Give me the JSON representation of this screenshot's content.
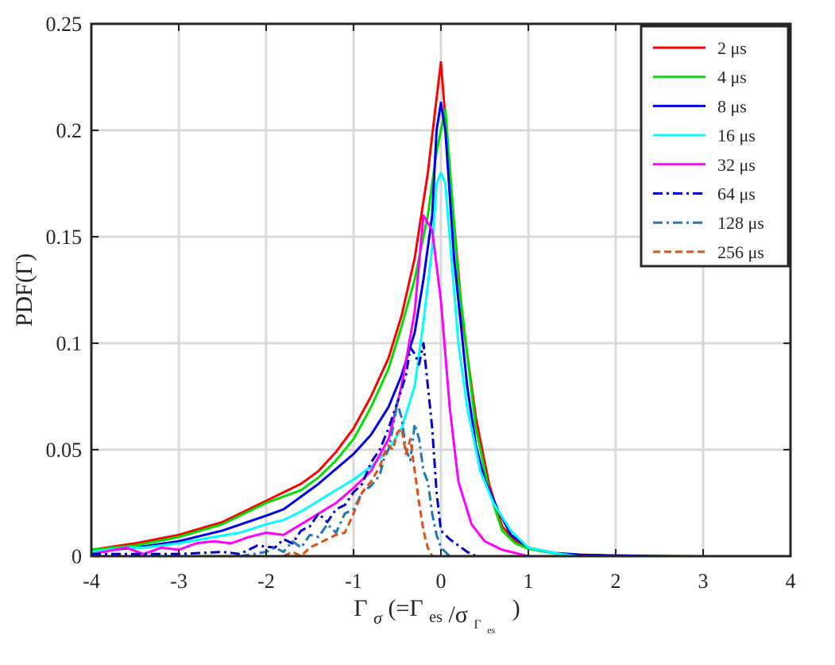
{
  "chart_data": {
    "type": "line",
    "title": "",
    "xlabel": {
      "gamma": "Γ",
      "sigma": "σ",
      "open": " (=Γ",
      "es": "es",
      "slash": "/σ",
      "gamma2": "Γ",
      "es2": "es",
      "close": ")"
    },
    "ylabel": "PDF(Γ)",
    "xlim": [
      -4,
      4
    ],
    "ylim": [
      0,
      0.25
    ],
    "xticks": [
      -4,
      -3,
      -2,
      -1,
      0,
      1,
      2,
      3,
      4
    ],
    "yticks": [
      0,
      0.05,
      0.1,
      0.15,
      0.2,
      0.25
    ],
    "xtick_labels": [
      "-4",
      "-3",
      "-2",
      "-1",
      "0",
      "1",
      "2",
      "3",
      "4"
    ],
    "ytick_labels": [
      "0",
      "0.05",
      "0.1",
      "0.15",
      "0.2",
      "0.25"
    ],
    "grid": true,
    "legend_position": "top-right",
    "series": [
      {
        "name": "2 μs",
        "color": "#ff0000",
        "dash": "solid",
        "x": [
          -4.0,
          -3.5,
          -3.0,
          -2.5,
          -2.0,
          -1.6,
          -1.4,
          -1.2,
          -1.0,
          -0.8,
          -0.6,
          -0.45,
          -0.3,
          -0.15,
          -0.05,
          0.0,
          0.1,
          0.25,
          0.4,
          0.55,
          0.7,
          0.85,
          1.0,
          1.3,
          1.6,
          2.0,
          2.5,
          3.0,
          3.35
        ],
        "y": [
          0.003,
          0.006,
          0.01,
          0.016,
          0.026,
          0.034,
          0.04,
          0.049,
          0.06,
          0.075,
          0.093,
          0.113,
          0.14,
          0.18,
          0.215,
          0.232,
          0.18,
          0.11,
          0.065,
          0.034,
          0.014,
          0.007,
          0.004,
          0.0015,
          0.0007,
          0.0003,
          0.0001,
          0.0,
          0.0
        ]
      },
      {
        "name": "4 μs",
        "color": "#00e000",
        "dash": "solid",
        "x": [
          -4.0,
          -3.5,
          -3.0,
          -2.5,
          -2.0,
          -1.6,
          -1.4,
          -1.2,
          -1.0,
          -0.8,
          -0.6,
          -0.45,
          -0.3,
          -0.15,
          -0.05,
          0.0,
          0.05,
          0.2,
          0.4,
          0.55,
          0.7,
          0.85,
          1.0,
          1.3,
          1.6,
          2.0,
          2.5,
          3.0,
          3.2
        ],
        "y": [
          0.003,
          0.005,
          0.009,
          0.015,
          0.025,
          0.031,
          0.037,
          0.045,
          0.055,
          0.07,
          0.088,
          0.108,
          0.13,
          0.16,
          0.19,
          0.2,
          0.21,
          0.13,
          0.06,
          0.031,
          0.012,
          0.006,
          0.0035,
          0.0013,
          0.0006,
          0.0003,
          0.0001,
          0.0,
          0.0
        ]
      },
      {
        "name": "8 μs",
        "color": "#0000e6",
        "dash": "solid",
        "x": [
          -4.0,
          -3.5,
          -3.0,
          -2.5,
          -2.0,
          -1.8,
          -1.6,
          -1.4,
          -1.2,
          -1.0,
          -0.8,
          -0.6,
          -0.45,
          -0.3,
          -0.2,
          -0.1,
          -0.05,
          0.0,
          0.05,
          0.15,
          0.3,
          0.4,
          0.5,
          0.65,
          0.8,
          1.0,
          1.3,
          1.6,
          2.0,
          2.6
        ],
        "y": [
          0.002,
          0.004,
          0.007,
          0.012,
          0.019,
          0.022,
          0.028,
          0.034,
          0.041,
          0.048,
          0.057,
          0.07,
          0.085,
          0.105,
          0.13,
          0.16,
          0.2,
          0.213,
          0.2,
          0.14,
          0.08,
          0.052,
          0.036,
          0.022,
          0.01,
          0.004,
          0.0015,
          0.0006,
          0.0003,
          0.0
        ]
      },
      {
        "name": "16 μs",
        "color": "#00ffff",
        "dash": "solid",
        "x": [
          -4.0,
          -3.6,
          -3.4,
          -3.0,
          -2.6,
          -2.3,
          -2.0,
          -1.8,
          -1.6,
          -1.4,
          -1.2,
          -1.0,
          -0.8,
          -0.6,
          -0.45,
          -0.3,
          -0.2,
          -0.1,
          -0.05,
          0.0,
          0.05,
          0.1,
          0.2,
          0.3,
          0.45,
          0.6,
          0.8,
          1.0,
          1.3,
          1.55
        ],
        "y": [
          0.002,
          0.004,
          0.004,
          0.006,
          0.009,
          0.011,
          0.015,
          0.017,
          0.021,
          0.026,
          0.031,
          0.036,
          0.042,
          0.05,
          0.06,
          0.08,
          0.11,
          0.145,
          0.175,
          0.18,
          0.175,
          0.15,
          0.1,
          0.07,
          0.04,
          0.025,
          0.012,
          0.004,
          0.0015,
          0.0
        ]
      },
      {
        "name": "32 μs",
        "color": "#ff00ff",
        "dash": "solid",
        "x": [
          -4.0,
          -3.6,
          -3.4,
          -3.2,
          -3.0,
          -2.8,
          -2.6,
          -2.4,
          -2.2,
          -2.0,
          -1.8,
          -1.6,
          -1.4,
          -1.2,
          -1.0,
          -0.8,
          -0.6,
          -0.45,
          -0.3,
          -0.2,
          -0.1,
          0.0,
          0.1,
          0.2,
          0.35,
          0.5,
          0.7,
          0.9,
          1.0
        ],
        "y": [
          0.001,
          0.004,
          0.001,
          0.004,
          0.003,
          0.006,
          0.007,
          0.006,
          0.009,
          0.011,
          0.01,
          0.015,
          0.02,
          0.025,
          0.032,
          0.04,
          0.055,
          0.08,
          0.115,
          0.16,
          0.153,
          0.12,
          0.07,
          0.035,
          0.015,
          0.007,
          0.003,
          0.001,
          0.0
        ]
      },
      {
        "name": "64 μs",
        "color": "#0000cc",
        "dash": "dashdot",
        "x": [
          -4.0,
          -3.0,
          -2.5,
          -2.3,
          -2.1,
          -1.9,
          -1.8,
          -1.7,
          -1.6,
          -1.5,
          -1.4,
          -1.3,
          -1.2,
          -1.1,
          -1.0,
          -0.9,
          -0.8,
          -0.7,
          -0.6,
          -0.5,
          -0.4,
          -0.35,
          -0.3,
          -0.25,
          -0.2,
          -0.15,
          -0.1,
          -0.05,
          0.0,
          0.05,
          0.1,
          0.2,
          0.3,
          0.4
        ],
        "y": [
          0.001,
          0.001,
          0.002,
          0.001,
          0.005,
          0.004,
          0.008,
          0.006,
          0.012,
          0.014,
          0.02,
          0.016,
          0.022,
          0.024,
          0.03,
          0.034,
          0.044,
          0.05,
          0.06,
          0.072,
          0.085,
          0.098,
          0.095,
          0.09,
          0.1,
          0.08,
          0.06,
          0.03,
          0.012,
          0.01,
          0.008,
          0.005,
          0.002,
          0.0
        ]
      },
      {
        "name": "128 μs",
        "color": "#1f77b4",
        "dash": "dashdot",
        "x": [
          -2.3,
          -2.0,
          -1.9,
          -1.8,
          -1.7,
          -1.6,
          -1.5,
          -1.4,
          -1.3,
          -1.2,
          -1.1,
          -1.0,
          -0.9,
          -0.8,
          -0.7,
          -0.65,
          -0.6,
          -0.55,
          -0.5,
          -0.45,
          -0.4,
          -0.35,
          -0.3,
          -0.25,
          -0.2,
          -0.15,
          -0.1,
          -0.05,
          0.0,
          0.1
        ],
        "y": [
          0.0,
          0.002,
          0.004,
          0.002,
          0.007,
          0.004,
          0.01,
          0.009,
          0.015,
          0.011,
          0.02,
          0.022,
          0.03,
          0.033,
          0.038,
          0.046,
          0.05,
          0.06,
          0.072,
          0.065,
          0.05,
          0.045,
          0.062,
          0.055,
          0.04,
          0.035,
          0.02,
          0.01,
          0.004,
          0.0
        ]
      },
      {
        "name": "256 μs",
        "color": "#d95319",
        "dash": "dashed",
        "x": [
          -1.8,
          -1.7,
          -1.6,
          -1.5,
          -1.4,
          -1.3,
          -1.2,
          -1.1,
          -1.0,
          -0.9,
          -0.8,
          -0.7,
          -0.65,
          -0.6,
          -0.55,
          -0.5,
          -0.45,
          -0.4,
          -0.35,
          -0.3,
          -0.25,
          -0.2,
          -0.15,
          -0.1
        ],
        "y": [
          0.0,
          0.002,
          0.0,
          0.004,
          0.006,
          0.008,
          0.01,
          0.011,
          0.02,
          0.03,
          0.035,
          0.042,
          0.048,
          0.052,
          0.05,
          0.058,
          0.06,
          0.048,
          0.055,
          0.04,
          0.025,
          0.012,
          0.004,
          0.0
        ]
      }
    ]
  }
}
